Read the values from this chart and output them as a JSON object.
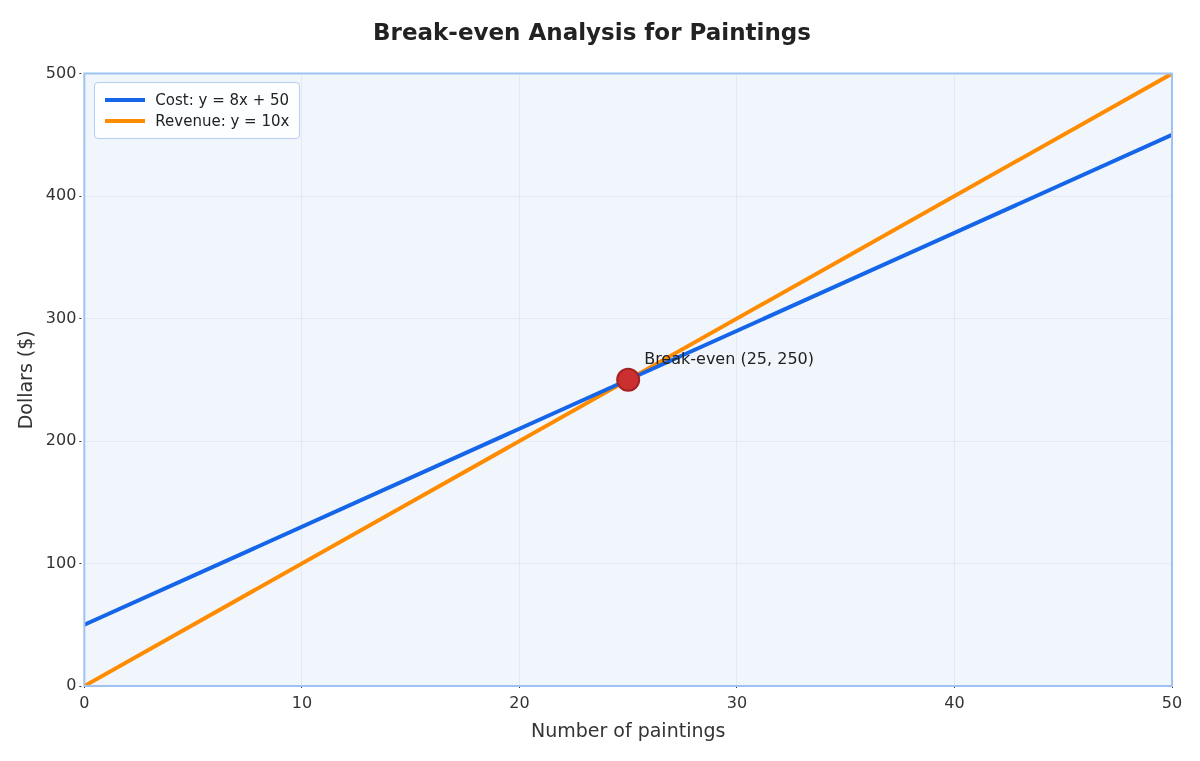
{
  "chart_data": {
    "type": "line",
    "title": "Break-even Analysis for Paintings",
    "xlabel": "Number of paintings",
    "ylabel": "Dollars ($)",
    "series": [
      {
        "name": "Cost: y = 8x + 50",
        "color": "#1565e8",
        "x": [
          0,
          50
        ],
        "values": [
          50,
          450
        ]
      },
      {
        "name": "Revenue: y = 10x",
        "color": "#ff8c00",
        "x": [
          0,
          50
        ],
        "values": [
          0,
          500
        ]
      },
      {
        "type": "scatter",
        "color": "#cc2f2f",
        "marker": "circle",
        "x": [
          25
        ],
        "values": [
          250
        ]
      }
    ],
    "annotations": [
      {
        "text": "Break-even (25, 250)",
        "x": 25,
        "y": 250
      }
    ],
    "xlim": [
      0,
      50
    ],
    "xticks": [
      0,
      10,
      20,
      30,
      40,
      50
    ],
    "ylim": [
      0,
      500
    ],
    "yticks": [
      0,
      100,
      200,
      300,
      400,
      500
    ],
    "grid": true,
    "legend": "top left",
    "marker": "none",
    "line_style": "solid"
  }
}
